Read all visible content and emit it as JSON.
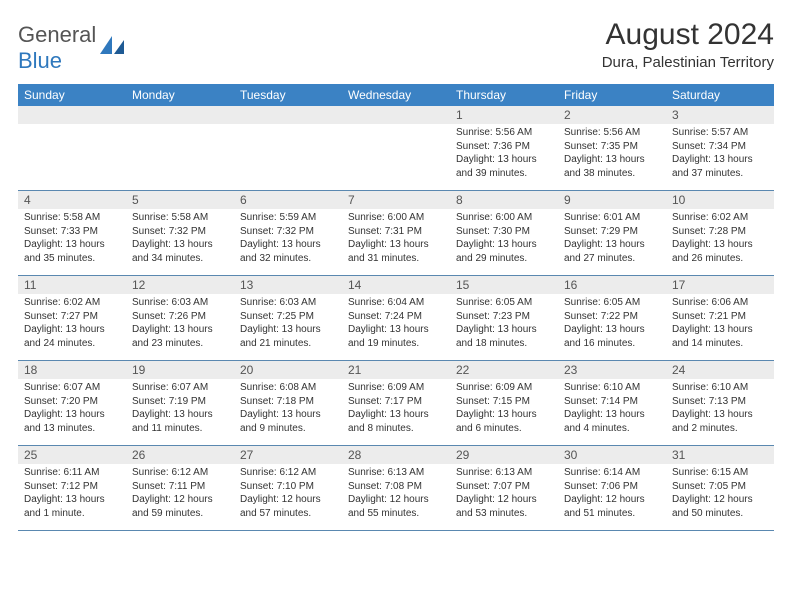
{
  "logo": {
    "word1": "General",
    "word2": "Blue"
  },
  "title": "August 2024",
  "location": "Dura, Palestinian Territory",
  "colors": {
    "header_bg": "#3b82c4",
    "header_text": "#ffffff",
    "daynum_bg": "#ececec",
    "daynum_text": "#555555",
    "cell_text": "#333333",
    "row_divider": "#5a88b0",
    "logo_gray": "#555555",
    "logo_blue": "#2f78bd",
    "page_bg": "#ffffff"
  },
  "typography": {
    "title_fontsize": 30,
    "location_fontsize": 15,
    "header_fontsize": 12,
    "daynum_fontsize": 12,
    "cell_fontsize": 10,
    "logo_fontsize": 22
  },
  "layout": {
    "columns": 7,
    "rows": 5,
    "first_day_column_index": 4
  },
  "weekdays": [
    "Sunday",
    "Monday",
    "Tuesday",
    "Wednesday",
    "Thursday",
    "Friday",
    "Saturday"
  ],
  "days": [
    {
      "n": 1,
      "sunrise": "5:56 AM",
      "sunset": "7:36 PM",
      "daylight": "13 hours and 39 minutes."
    },
    {
      "n": 2,
      "sunrise": "5:56 AM",
      "sunset": "7:35 PM",
      "daylight": "13 hours and 38 minutes."
    },
    {
      "n": 3,
      "sunrise": "5:57 AM",
      "sunset": "7:34 PM",
      "daylight": "13 hours and 37 minutes."
    },
    {
      "n": 4,
      "sunrise": "5:58 AM",
      "sunset": "7:33 PM",
      "daylight": "13 hours and 35 minutes."
    },
    {
      "n": 5,
      "sunrise": "5:58 AM",
      "sunset": "7:32 PM",
      "daylight": "13 hours and 34 minutes."
    },
    {
      "n": 6,
      "sunrise": "5:59 AM",
      "sunset": "7:32 PM",
      "daylight": "13 hours and 32 minutes."
    },
    {
      "n": 7,
      "sunrise": "6:00 AM",
      "sunset": "7:31 PM",
      "daylight": "13 hours and 31 minutes."
    },
    {
      "n": 8,
      "sunrise": "6:00 AM",
      "sunset": "7:30 PM",
      "daylight": "13 hours and 29 minutes."
    },
    {
      "n": 9,
      "sunrise": "6:01 AM",
      "sunset": "7:29 PM",
      "daylight": "13 hours and 27 minutes."
    },
    {
      "n": 10,
      "sunrise": "6:02 AM",
      "sunset": "7:28 PM",
      "daylight": "13 hours and 26 minutes."
    },
    {
      "n": 11,
      "sunrise": "6:02 AM",
      "sunset": "7:27 PM",
      "daylight": "13 hours and 24 minutes."
    },
    {
      "n": 12,
      "sunrise": "6:03 AM",
      "sunset": "7:26 PM",
      "daylight": "13 hours and 23 minutes."
    },
    {
      "n": 13,
      "sunrise": "6:03 AM",
      "sunset": "7:25 PM",
      "daylight": "13 hours and 21 minutes."
    },
    {
      "n": 14,
      "sunrise": "6:04 AM",
      "sunset": "7:24 PM",
      "daylight": "13 hours and 19 minutes."
    },
    {
      "n": 15,
      "sunrise": "6:05 AM",
      "sunset": "7:23 PM",
      "daylight": "13 hours and 18 minutes."
    },
    {
      "n": 16,
      "sunrise": "6:05 AM",
      "sunset": "7:22 PM",
      "daylight": "13 hours and 16 minutes."
    },
    {
      "n": 17,
      "sunrise": "6:06 AM",
      "sunset": "7:21 PM",
      "daylight": "13 hours and 14 minutes."
    },
    {
      "n": 18,
      "sunrise": "6:07 AM",
      "sunset": "7:20 PM",
      "daylight": "13 hours and 13 minutes."
    },
    {
      "n": 19,
      "sunrise": "6:07 AM",
      "sunset": "7:19 PM",
      "daylight": "13 hours and 11 minutes."
    },
    {
      "n": 20,
      "sunrise": "6:08 AM",
      "sunset": "7:18 PM",
      "daylight": "13 hours and 9 minutes."
    },
    {
      "n": 21,
      "sunrise": "6:09 AM",
      "sunset": "7:17 PM",
      "daylight": "13 hours and 8 minutes."
    },
    {
      "n": 22,
      "sunrise": "6:09 AM",
      "sunset": "7:15 PM",
      "daylight": "13 hours and 6 minutes."
    },
    {
      "n": 23,
      "sunrise": "6:10 AM",
      "sunset": "7:14 PM",
      "daylight": "13 hours and 4 minutes."
    },
    {
      "n": 24,
      "sunrise": "6:10 AM",
      "sunset": "7:13 PM",
      "daylight": "13 hours and 2 minutes."
    },
    {
      "n": 25,
      "sunrise": "6:11 AM",
      "sunset": "7:12 PM",
      "daylight": "13 hours and 1 minute."
    },
    {
      "n": 26,
      "sunrise": "6:12 AM",
      "sunset": "7:11 PM",
      "daylight": "12 hours and 59 minutes."
    },
    {
      "n": 27,
      "sunrise": "6:12 AM",
      "sunset": "7:10 PM",
      "daylight": "12 hours and 57 minutes."
    },
    {
      "n": 28,
      "sunrise": "6:13 AM",
      "sunset": "7:08 PM",
      "daylight": "12 hours and 55 minutes."
    },
    {
      "n": 29,
      "sunrise": "6:13 AM",
      "sunset": "7:07 PM",
      "daylight": "12 hours and 53 minutes."
    },
    {
      "n": 30,
      "sunrise": "6:14 AM",
      "sunset": "7:06 PM",
      "daylight": "12 hours and 51 minutes."
    },
    {
      "n": 31,
      "sunrise": "6:15 AM",
      "sunset": "7:05 PM",
      "daylight": "12 hours and 50 minutes."
    }
  ],
  "labels": {
    "sunrise": "Sunrise: ",
    "sunset": "Sunset: ",
    "daylight": "Daylight: "
  }
}
